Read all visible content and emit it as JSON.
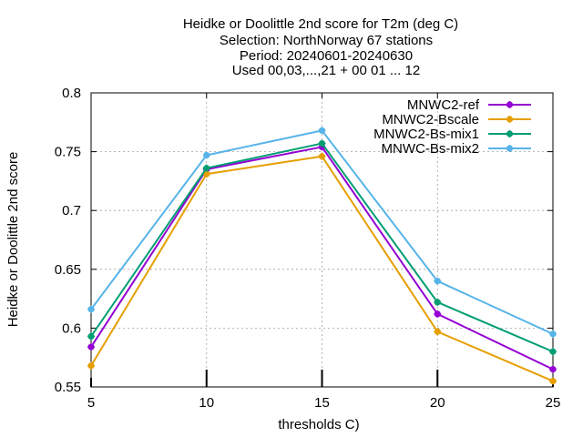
{
  "chart_data": {
    "type": "line",
    "title_lines": [
      "Heidke or Doolittle 2nd score  for T2m (deg C)",
      "Selection: NorthNorway     67 stations",
      "Period: 20240601-20240630",
      "Used 00,03,...,21 + 00 01 ... 12"
    ],
    "xlabel": "thresholds C)",
    "ylabel": "Heidke or Doolittle 2nd score",
    "x": [
      5,
      10,
      15,
      20,
      25
    ],
    "x_ticks": [
      5,
      10,
      15,
      20,
      25
    ],
    "x_tick_labels": [
      "5",
      "10",
      "15",
      "20",
      "25"
    ],
    "y_ticks": [
      0.55,
      0.6,
      0.65,
      0.7,
      0.75,
      0.8
    ],
    "y_tick_labels": [
      "0.55",
      "0.6",
      "0.65",
      "0.7",
      "0.75",
      "0.8"
    ],
    "xlim": [
      5,
      25
    ],
    "ylim": [
      0.55,
      0.8
    ],
    "grid": true,
    "legend_position": "top-right",
    "series": [
      {
        "name": "MNWC2-ref",
        "color": "#9400d3",
        "values": [
          0.584,
          0.735,
          0.754,
          0.612,
          0.565
        ]
      },
      {
        "name": "MNWC2-Bscale",
        "color": "#e69f00",
        "values": [
          0.568,
          0.731,
          0.746,
          0.597,
          0.555
        ]
      },
      {
        "name": "MNWC2-Bs-mix1",
        "color": "#009e73",
        "values": [
          0.593,
          0.736,
          0.757,
          0.622,
          0.58
        ]
      },
      {
        "name": "MNWC-Bs-mix2",
        "color": "#56b4e9",
        "values": [
          0.616,
          0.747,
          0.768,
          0.64,
          0.595
        ]
      }
    ]
  }
}
